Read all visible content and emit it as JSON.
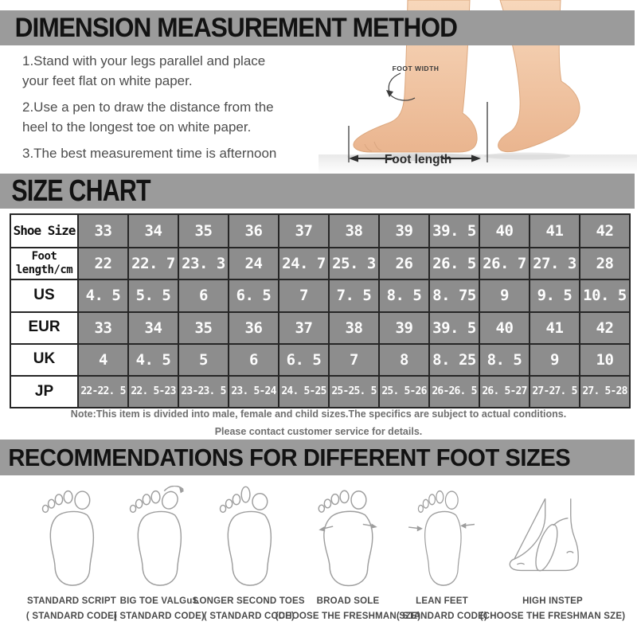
{
  "measurement": {
    "title": "DIMENSION MEASUREMENT METHOD",
    "steps": [
      [
        "1.Stand with your legs parallel and place",
        "your feet flat on white paper."
      ],
      [
        "2.Use a pen to draw the distance from the",
        "heel to the longest toe on white paper."
      ],
      [
        "3.The best measurement time is afternoon"
      ]
    ],
    "foot_width_label": "FOOT WIDTH",
    "foot_length_label": "Foot length"
  },
  "size_chart": {
    "title": "SIZE CHART",
    "rows": [
      {
        "label": "Shoe Size",
        "cells": [
          "33",
          "34",
          "35",
          "36",
          "37",
          "38",
          "39",
          "39. 5",
          "40",
          "41",
          "42"
        ]
      },
      {
        "label": "Foot\nlength/cm",
        "cells": [
          "22",
          "22. 7",
          "23. 3",
          "24",
          "24. 7",
          "25. 3",
          "26",
          "26. 5",
          "26. 7",
          "27. 3",
          "28"
        ]
      },
      {
        "label": "US",
        "cells": [
          "4. 5",
          "5. 5",
          "6",
          "6. 5",
          "7",
          "7. 5",
          "8. 5",
          "8. 75",
          "9",
          "9. 5",
          "10. 5"
        ]
      },
      {
        "label": "EUR",
        "cells": [
          "33",
          "34",
          "35",
          "36",
          "37",
          "38",
          "39",
          "39. 5",
          "40",
          "41",
          "42"
        ]
      },
      {
        "label": "UK",
        "cells": [
          "4",
          "4. 5",
          "5",
          "6",
          "6. 5",
          "7",
          "8",
          "8. 25",
          "8. 5",
          "9",
          "10"
        ]
      },
      {
        "label": "JP",
        "cells": [
          "22-22. 5",
          "22. 5-23",
          "23-23. 5",
          "23. 5-24",
          "24. 5-25",
          "25-25. 5",
          "25. 5-26",
          "26-26. 5",
          "26. 5-27",
          "27-27. 5",
          "27. 5-28"
        ]
      }
    ],
    "note_line1": "Note:This item is divided into male, female and child sizes.The specifics are subject to actual conditions.",
    "note_line2": "Please contact customer service for details."
  },
  "recommendations": {
    "title": "RECOMMENDATIONS FOR DIFFERENT FOOT SIZES",
    "items": [
      {
        "name": "STANDARD SCRIPT",
        "code": "( STANDARD CODE)"
      },
      {
        "name": "BIG TOE VALGuS",
        "code": "( STANDARD CODE)"
      },
      {
        "name": "LONGER SECOND TOES",
        "code": "( STANDARD CODE)"
      },
      {
        "name": "BROAD SOLE",
        "code": "(CHOOSE THE FRESHMAN SZE)"
      },
      {
        "name": "LEAN FEET",
        "code": "( STANDARD CODE)"
      },
      {
        "name": "HIGH INSTEP",
        "code": "(CHOOSE THE FRESHMAN SZE)"
      }
    ]
  },
  "colors": {
    "banner_gray": "#9b9b9b",
    "table_cell_gray": "#8d8d8d",
    "table_border": "#262626",
    "note_gray": "#6f6f6f",
    "skin": "#f2c9a6",
    "sketch_outline": "#9d9d9d"
  }
}
